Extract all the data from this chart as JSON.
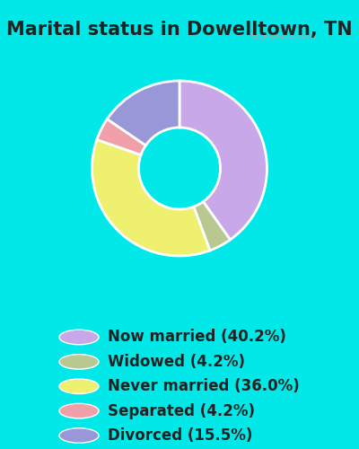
{
  "title": "Marital status in Dowelltown, TN",
  "slices": [
    40.2,
    4.2,
    36.0,
    4.2,
    15.5
  ],
  "labels": [
    "Now married (40.2%)",
    "Widowed (4.2%)",
    "Never married (36.0%)",
    "Separated (4.2%)",
    "Divorced (15.5%)"
  ],
  "colors": [
    "#c8a8e8",
    "#b8c890",
    "#f0f070",
    "#f0a0a8",
    "#9898d8"
  ],
  "background_color_chart": "#ceeace",
  "background_color_page": "#00e8e8",
  "title_fontsize": 15,
  "legend_fontsize": 12,
  "watermark": "City-Data.com",
  "donut_width": 0.4,
  "start_angle": 90
}
